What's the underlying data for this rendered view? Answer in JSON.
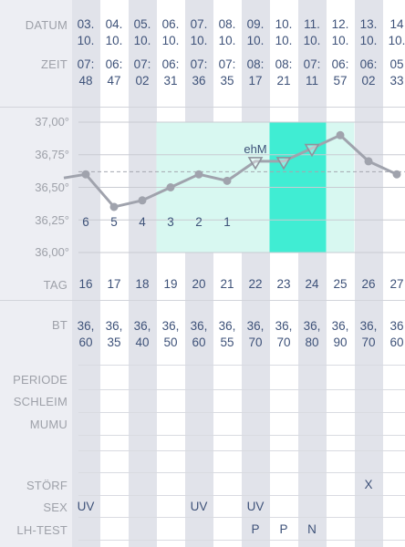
{
  "labels": {
    "datum": "DATUM",
    "zeit": "ZEIT",
    "tag": "TAG",
    "bt": "BT",
    "periode": "PERIODE",
    "schleim": "SCHLEIM",
    "mumu": "MUMU",
    "stoerf": "STÖRF",
    "sex": "SEX",
    "lh_test": "LH-TEST"
  },
  "y_ticks": [
    "37,00°",
    "36,75°",
    "36,50°",
    "36,25°",
    "36,00°"
  ],
  "columns": [
    {
      "date": [
        "03.",
        "10."
      ],
      "time": [
        "07:",
        "48"
      ],
      "day": "16",
      "bt": [
        "36,",
        "60"
      ],
      "stoerf": "",
      "sex": "UV",
      "lh": ""
    },
    {
      "date": [
        "04.",
        "10."
      ],
      "time": [
        "06:",
        "47"
      ],
      "day": "17",
      "bt": [
        "36,",
        "35"
      ],
      "stoerf": "",
      "sex": "",
      "lh": ""
    },
    {
      "date": [
        "05.",
        "10."
      ],
      "time": [
        "07:",
        "02"
      ],
      "day": "18",
      "bt": [
        "36,",
        "40"
      ],
      "stoerf": "",
      "sex": "",
      "lh": ""
    },
    {
      "date": [
        "06.",
        "10."
      ],
      "time": [
        "06:",
        "31"
      ],
      "day": "19",
      "bt": [
        "36,",
        "50"
      ],
      "stoerf": "",
      "sex": "",
      "lh": ""
    },
    {
      "date": [
        "07.",
        "10."
      ],
      "time": [
        "07:",
        "36"
      ],
      "day": "20",
      "bt": [
        "36,",
        "60"
      ],
      "stoerf": "",
      "sex": "UV",
      "lh": ""
    },
    {
      "date": [
        "08.",
        "10."
      ],
      "time": [
        "07:",
        "35"
      ],
      "day": "21",
      "bt": [
        "36,",
        "55"
      ],
      "stoerf": "",
      "sex": "",
      "lh": ""
    },
    {
      "date": [
        "09.",
        "10."
      ],
      "time": [
        "08:",
        "17"
      ],
      "day": "22",
      "bt": [
        "36,",
        "70"
      ],
      "stoerf": "",
      "sex": "UV",
      "lh": "P"
    },
    {
      "date": [
        "10.",
        "10."
      ],
      "time": [
        "08:",
        "21"
      ],
      "day": "23",
      "bt": [
        "36,",
        "70"
      ],
      "stoerf": "",
      "sex": "",
      "lh": "P"
    },
    {
      "date": [
        "11.",
        "10."
      ],
      "time": [
        "07:",
        "11"
      ],
      "day": "24",
      "bt": [
        "36,",
        "80"
      ],
      "stoerf": "",
      "sex": "",
      "lh": "N"
    },
    {
      "date": [
        "12.",
        "10."
      ],
      "time": [
        "06:",
        "57"
      ],
      "day": "25",
      "bt": [
        "36,",
        "90"
      ],
      "stoerf": "",
      "sex": "",
      "lh": ""
    },
    {
      "date": [
        "13.",
        "10."
      ],
      "time": [
        "06:",
        "02"
      ],
      "day": "26",
      "bt": [
        "36,",
        "70"
      ],
      "stoerf": "X",
      "sex": "",
      "lh": ""
    },
    {
      "date": [
        "14",
        "10."
      ],
      "time": [
        "05",
        "33"
      ],
      "day": "27",
      "bt": [
        "36",
        "60"
      ],
      "stoerf": "",
      "sex": "",
      "lh": ""
    }
  ],
  "chart_data": {
    "type": "line",
    "x": [
      16,
      17,
      18,
      19,
      20,
      21,
      22,
      23,
      24,
      25,
      26,
      27
    ],
    "series": [
      {
        "values": [
          36.6,
          36.35,
          36.4,
          36.5,
          36.6,
          36.55,
          36.7,
          36.7,
          36.8,
          36.9,
          36.7,
          36.6
        ]
      }
    ],
    "ylim": [
      36.0,
      37.0
    ],
    "cover_line": 36.62,
    "cover_numbers": [
      {
        "day": 16,
        "label": "6"
      },
      {
        "day": 17,
        "label": "5"
      },
      {
        "day": 18,
        "label": "4"
      },
      {
        "day": 19,
        "label": "3"
      },
      {
        "day": 20,
        "label": "2"
      },
      {
        "day": 21,
        "label": "1"
      }
    ],
    "annotation": {
      "day": 22,
      "label": "ehM"
    },
    "triangle_days": [
      22,
      23,
      24
    ],
    "highlight": {
      "light_days": [
        19,
        25
      ],
      "bright_days": [
        23,
        24
      ],
      "light_color": "#d8f8f1",
      "bright_color": "#40edd3"
    },
    "line_color": "#a0a3ad"
  }
}
